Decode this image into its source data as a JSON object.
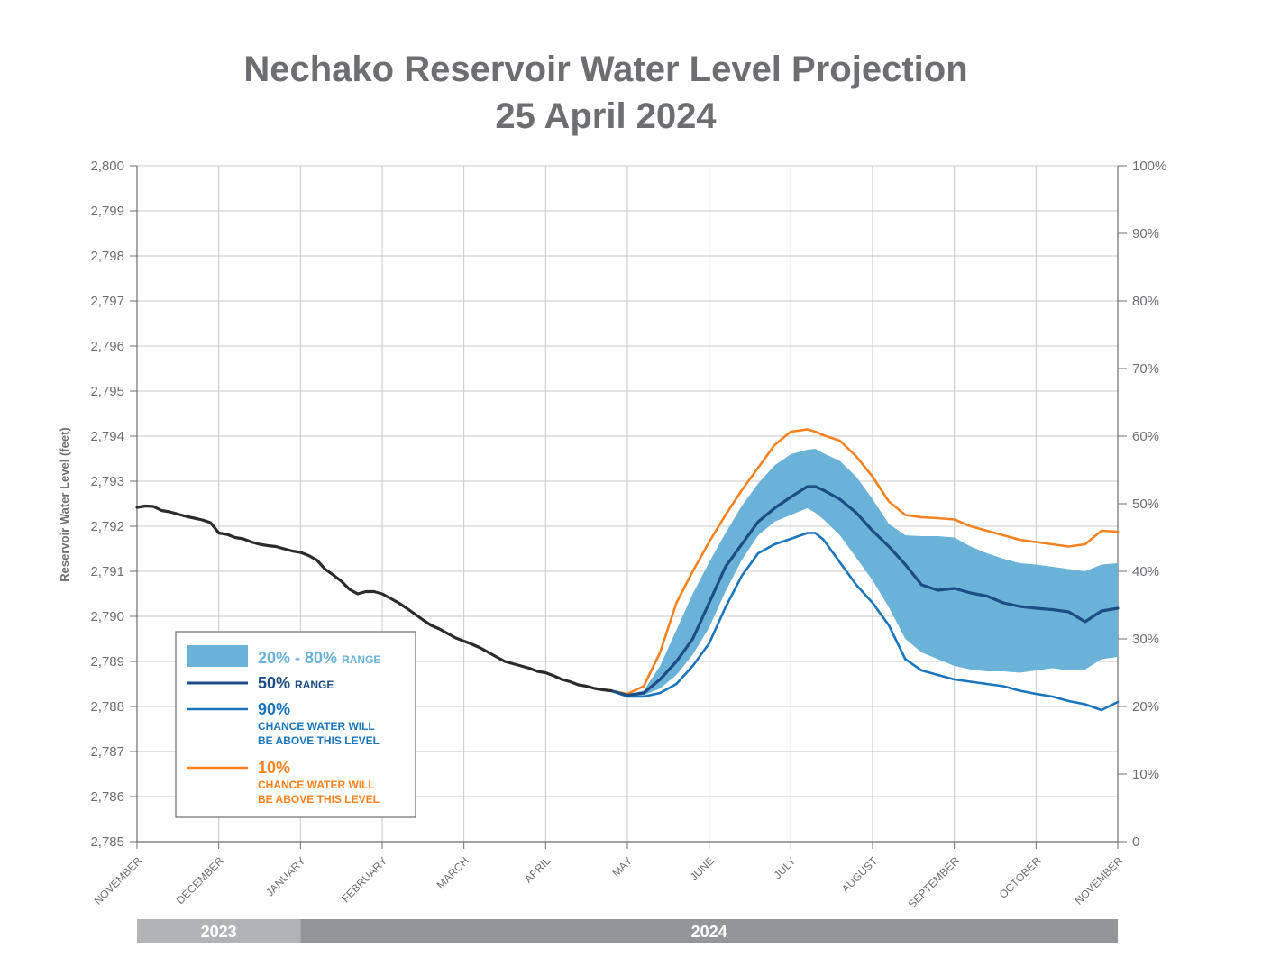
{
  "title_line1": "Nechako Reservoir Water Level Projection",
  "title_line2": "25 April 2024",
  "chart_data": {
    "type": "line",
    "ylabel": "Reservoir Water Level (feet)",
    "ylim": [
      2785,
      2800
    ],
    "yticks": [
      "2,800",
      "2,799",
      "2,798",
      "2,797",
      "2,796",
      "2,795",
      "2,794",
      "2,793",
      "2,792",
      "2,791",
      "2,790",
      "2,789",
      "2,788",
      "2,787",
      "2,786",
      "2,785"
    ],
    "y2ticks": [
      "100%",
      "90%",
      "80%",
      "70%",
      "60%",
      "50%",
      "40%",
      "30%",
      "20%",
      "10%",
      "0"
    ],
    "xlim": [
      0,
      12
    ],
    "months": [
      "NOVEMBER",
      "DECEMBER",
      "JANUARY",
      "FEBRUARY",
      "MARCH",
      "APRIL",
      "MAY",
      "JUNE",
      "JULY",
      "AUGUST",
      "SEPTEMBER",
      "OCTOBER",
      "NOVEMBER"
    ],
    "years": [
      {
        "label": "2023",
        "start": 0,
        "end": 2,
        "color": "#b1b3b6"
      },
      {
        "label": "2024",
        "start": 2,
        "end": 12,
        "color": "#939598"
      }
    ],
    "grid": true,
    "legend_position": "bottom-left",
    "series": [
      {
        "key": "historical",
        "color": "#2b2b2b",
        "x": [
          0,
          0.1,
          0.2,
          0.3,
          0.4,
          0.5,
          0.6,
          0.7,
          0.8,
          0.9,
          1.0,
          1.1,
          1.2,
          1.3,
          1.4,
          1.5,
          1.6,
          1.7,
          1.8,
          1.9,
          2.0,
          2.1,
          2.2,
          2.3,
          2.4,
          2.5,
          2.6,
          2.7,
          2.8,
          2.9,
          3.0,
          3.1,
          3.2,
          3.3,
          3.4,
          3.5,
          3.6,
          3.7,
          3.8,
          3.9,
          4.0,
          4.1,
          4.2,
          4.3,
          4.4,
          4.5,
          4.6,
          4.7,
          4.8,
          4.9,
          5.0,
          5.1,
          5.2,
          5.3,
          5.4,
          5.5,
          5.6,
          5.7,
          5.8
        ],
        "y": [
          2792.42,
          2792.45,
          2792.44,
          2792.35,
          2792.32,
          2792.27,
          2792.22,
          2792.18,
          2792.14,
          2792.08,
          2791.85,
          2791.82,
          2791.75,
          2791.72,
          2791.65,
          2791.6,
          2791.57,
          2791.55,
          2791.5,
          2791.45,
          2791.42,
          2791.35,
          2791.25,
          2791.05,
          2790.92,
          2790.78,
          2790.6,
          2790.5,
          2790.55,
          2790.55,
          2790.5,
          2790.4,
          2790.3,
          2790.18,
          2790.05,
          2789.92,
          2789.8,
          2789.72,
          2789.62,
          2789.52,
          2789.45,
          2789.38,
          2789.3,
          2789.2,
          2789.1,
          2789.0,
          2788.95,
          2788.9,
          2788.85,
          2788.78,
          2788.75,
          2788.68,
          2788.6,
          2788.55,
          2788.48,
          2788.45,
          2788.4,
          2788.37,
          2788.35
        ]
      },
      {
        "key": "p50",
        "color": "#1d4d85",
        "x": [
          5.8,
          6.0,
          6.2,
          6.4,
          6.6,
          6.8,
          7.0,
          7.2,
          7.4,
          7.6,
          7.8,
          8.0,
          8.2,
          8.3,
          8.4,
          8.6,
          8.8,
          9.0,
          9.2,
          9.4,
          9.6,
          9.8,
          10.0,
          10.2,
          10.4,
          10.6,
          10.8,
          11.0,
          11.2,
          11.4,
          11.6,
          11.8,
          12.0
        ],
        "y": [
          2788.35,
          2788.25,
          2788.3,
          2788.6,
          2789.0,
          2789.5,
          2790.3,
          2791.1,
          2791.6,
          2792.1,
          2792.4,
          2792.65,
          2792.88,
          2792.88,
          2792.8,
          2792.6,
          2792.3,
          2791.9,
          2791.55,
          2791.15,
          2790.7,
          2790.58,
          2790.62,
          2790.52,
          2790.45,
          2790.3,
          2790.22,
          2790.18,
          2790.15,
          2790.1,
          2789.88,
          2790.12,
          2790.18
        ]
      },
      {
        "key": "p90",
        "color": "#1a75bc",
        "x": [
          5.8,
          6.0,
          6.2,
          6.4,
          6.6,
          6.8,
          7.0,
          7.2,
          7.4,
          7.6,
          7.8,
          8.0,
          8.2,
          8.3,
          8.4,
          8.6,
          8.8,
          9.0,
          9.2,
          9.4,
          9.6,
          9.8,
          10.0,
          10.2,
          10.4,
          10.6,
          10.8,
          11.0,
          11.2,
          11.4,
          11.6,
          11.8,
          12.0
        ],
        "y": [
          2788.35,
          2788.22,
          2788.22,
          2788.3,
          2788.5,
          2788.9,
          2789.4,
          2790.2,
          2790.9,
          2791.4,
          2791.6,
          2791.72,
          2791.85,
          2791.85,
          2791.7,
          2791.2,
          2790.7,
          2790.3,
          2789.8,
          2789.05,
          2788.8,
          2788.7,
          2788.6,
          2788.55,
          2788.5,
          2788.45,
          2788.35,
          2788.28,
          2788.22,
          2788.12,
          2788.05,
          2787.92,
          2788.1
        ]
      },
      {
        "key": "p10",
        "color": "#f58220",
        "x": [
          5.8,
          6.0,
          6.2,
          6.4,
          6.6,
          6.8,
          7.0,
          7.2,
          7.4,
          7.6,
          7.8,
          8.0,
          8.2,
          8.3,
          8.4,
          8.6,
          8.8,
          9.0,
          9.2,
          9.4,
          9.6,
          9.8,
          10.0,
          10.2,
          10.4,
          10.6,
          10.8,
          11.0,
          11.2,
          11.4,
          11.6,
          11.8,
          12.0
        ],
        "y": [
          2788.35,
          2788.28,
          2788.45,
          2789.2,
          2790.3,
          2791.0,
          2791.65,
          2792.25,
          2792.8,
          2793.3,
          2793.8,
          2794.1,
          2794.15,
          2794.1,
          2794.02,
          2793.9,
          2793.55,
          2793.1,
          2792.55,
          2792.25,
          2792.2,
          2792.18,
          2792.15,
          2792.0,
          2791.9,
          2791.8,
          2791.7,
          2791.65,
          2791.6,
          2791.55,
          2791.6,
          2791.9,
          2791.88
        ]
      }
    ],
    "band": {
      "key": "p20_80",
      "color": "#6ab2d8",
      "x": [
        5.8,
        6.0,
        6.2,
        6.4,
        6.6,
        6.8,
        7.0,
        7.2,
        7.4,
        7.6,
        7.8,
        8.0,
        8.2,
        8.3,
        8.4,
        8.6,
        8.8,
        9.0,
        9.2,
        9.4,
        9.6,
        9.8,
        10.0,
        10.2,
        10.4,
        10.6,
        10.8,
        11.0,
        11.2,
        11.4,
        11.6,
        11.8,
        12.0
      ],
      "upper": [
        2788.35,
        2788.26,
        2788.35,
        2788.9,
        2789.7,
        2790.5,
        2791.2,
        2791.85,
        2792.45,
        2792.95,
        2793.35,
        2793.6,
        2793.7,
        2793.72,
        2793.62,
        2793.45,
        2793.1,
        2792.6,
        2792.05,
        2791.8,
        2791.78,
        2791.78,
        2791.75,
        2791.55,
        2791.4,
        2791.28,
        2791.18,
        2791.15,
        2791.1,
        2791.05,
        2791.0,
        2791.15,
        2791.18
      ],
      "lower": [
        2788.35,
        2788.23,
        2788.25,
        2788.4,
        2788.7,
        2789.15,
        2789.75,
        2790.55,
        2791.25,
        2791.8,
        2792.1,
        2792.25,
        2792.4,
        2792.3,
        2792.15,
        2791.8,
        2791.3,
        2790.8,
        2790.2,
        2789.5,
        2789.2,
        2789.05,
        2788.9,
        2788.82,
        2788.78,
        2788.78,
        2788.75,
        2788.8,
        2788.85,
        2788.8,
        2788.82,
        2789.05,
        2789.1
      ]
    }
  },
  "legend": {
    "band_pct": "20% - 80%",
    "band_word": "RANGE",
    "p50_pct": "50%",
    "p50_word": "RANGE",
    "p90_pct": "90%",
    "p90_line1": "CHANCE WATER WILL",
    "p90_line2": "BE ABOVE THIS LEVEL",
    "p10_pct": "10%",
    "p10_line1": "CHANCE WATER WILL",
    "p10_line2": "BE ABOVE THIS LEVEL"
  }
}
